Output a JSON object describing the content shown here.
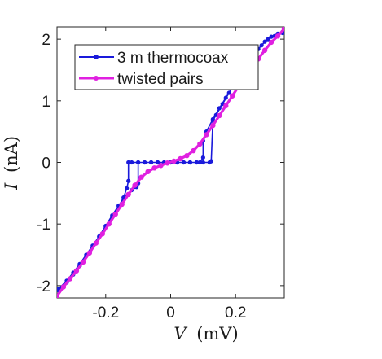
{
  "chart_data": {
    "type": "line",
    "xlabel": {
      "symbol": "V",
      "unit": "(mV)"
    },
    "ylabel": {
      "symbol": "I",
      "unit": "(nA)"
    },
    "xlim": [
      -0.35,
      0.35
    ],
    "ylim": [
      -2.2,
      2.2
    ],
    "xticks": [
      -0.2,
      0,
      0.2
    ],
    "xtick_labels": [
      "-0.2",
      "0",
      "0.2"
    ],
    "yticks": [
      -2,
      -1,
      0,
      1,
      2
    ],
    "ytick_labels": [
      "-2",
      "-1",
      "0",
      "1",
      "2"
    ],
    "grid": false,
    "legend_position": "top-left",
    "series": [
      {
        "name": "3 m thermocoax",
        "color": "#1a1adb",
        "marker": "dot",
        "x": [
          -0.345,
          -0.32,
          -0.3,
          -0.28,
          -0.26,
          -0.24,
          -0.22,
          -0.2,
          -0.18,
          -0.16,
          -0.145,
          -0.135,
          -0.13,
          -0.13,
          -0.12,
          -0.1,
          -0.08,
          -0.06,
          -0.04,
          -0.02,
          0,
          0.02,
          0.04,
          0.06,
          0.08,
          0.1,
          0.12,
          0.125,
          0.13,
          0.14,
          0.16,
          0.18,
          0.2,
          0.22,
          0.24,
          0.26,
          0.28,
          0.3,
          0.32,
          0.345,
          null,
          -0.345,
          -0.32,
          -0.3,
          -0.28,
          -0.26,
          -0.24,
          -0.22,
          -0.2,
          -0.18,
          -0.16,
          -0.14,
          -0.12,
          -0.105,
          -0.1,
          -0.1,
          -0.08,
          -0.06,
          -0.04,
          -0.02,
          0,
          0.02,
          0.04,
          0.06,
          0.08,
          0.09,
          0.1,
          0.1,
          0.11,
          0.13,
          0.15,
          0.17,
          0.19,
          0.21,
          0.23,
          0.25,
          0.27,
          0.29,
          0.31,
          0.33,
          0.345
        ],
        "y": [
          -2.08,
          -1.95,
          -1.82,
          -1.68,
          -1.52,
          -1.37,
          -1.21,
          -1.05,
          -0.88,
          -0.71,
          -0.57,
          -0.42,
          -0.3,
          0,
          0,
          0,
          0,
          0,
          0,
          0,
          0,
          0,
          0,
          0,
          0,
          0,
          0,
          0.02,
          0.68,
          0.77,
          0.95,
          1.13,
          1.31,
          1.48,
          1.64,
          1.78,
          1.9,
          2.0,
          2.05,
          2.1,
          null,
          -2.05,
          -1.92,
          -1.79,
          -1.65,
          -1.5,
          -1.35,
          -1.2,
          -1.03,
          -0.86,
          -0.7,
          -0.55,
          -0.45,
          -0.4,
          -0.34,
          0,
          0,
          0,
          0,
          0,
          0,
          0,
          0,
          0,
          0,
          0,
          0.08,
          0.35,
          0.5,
          0.7,
          0.88,
          1.05,
          1.22,
          1.39,
          1.56,
          1.71,
          1.84,
          1.96,
          2.04,
          2.09,
          2.12
        ]
      },
      {
        "name": "twisted pairs",
        "color": "#e020e0",
        "marker": "dot",
        "x": [
          -0.35,
          -0.33,
          -0.31,
          -0.29,
          -0.27,
          -0.25,
          -0.23,
          -0.21,
          -0.19,
          -0.17,
          -0.15,
          -0.13,
          -0.11,
          -0.09,
          -0.07,
          -0.05,
          -0.03,
          -0.01,
          0.01,
          0.03,
          0.05,
          0.07,
          0.09,
          0.11,
          0.13,
          0.15,
          0.17,
          0.19,
          0.21,
          0.23,
          0.25,
          0.27,
          0.29,
          0.31,
          0.33,
          0.35
        ],
        "y": [
          -2.17,
          -2.02,
          -1.89,
          -1.76,
          -1.62,
          -1.47,
          -1.31,
          -1.16,
          -1.0,
          -0.84,
          -0.68,
          -0.52,
          -0.37,
          -0.24,
          -0.15,
          -0.09,
          -0.05,
          -0.01,
          0.02,
          0.06,
          0.11,
          0.19,
          0.3,
          0.45,
          0.6,
          0.76,
          0.92,
          1.08,
          1.24,
          1.39,
          1.54,
          1.68,
          1.82,
          1.95,
          2.05,
          2.17
        ]
      }
    ]
  }
}
